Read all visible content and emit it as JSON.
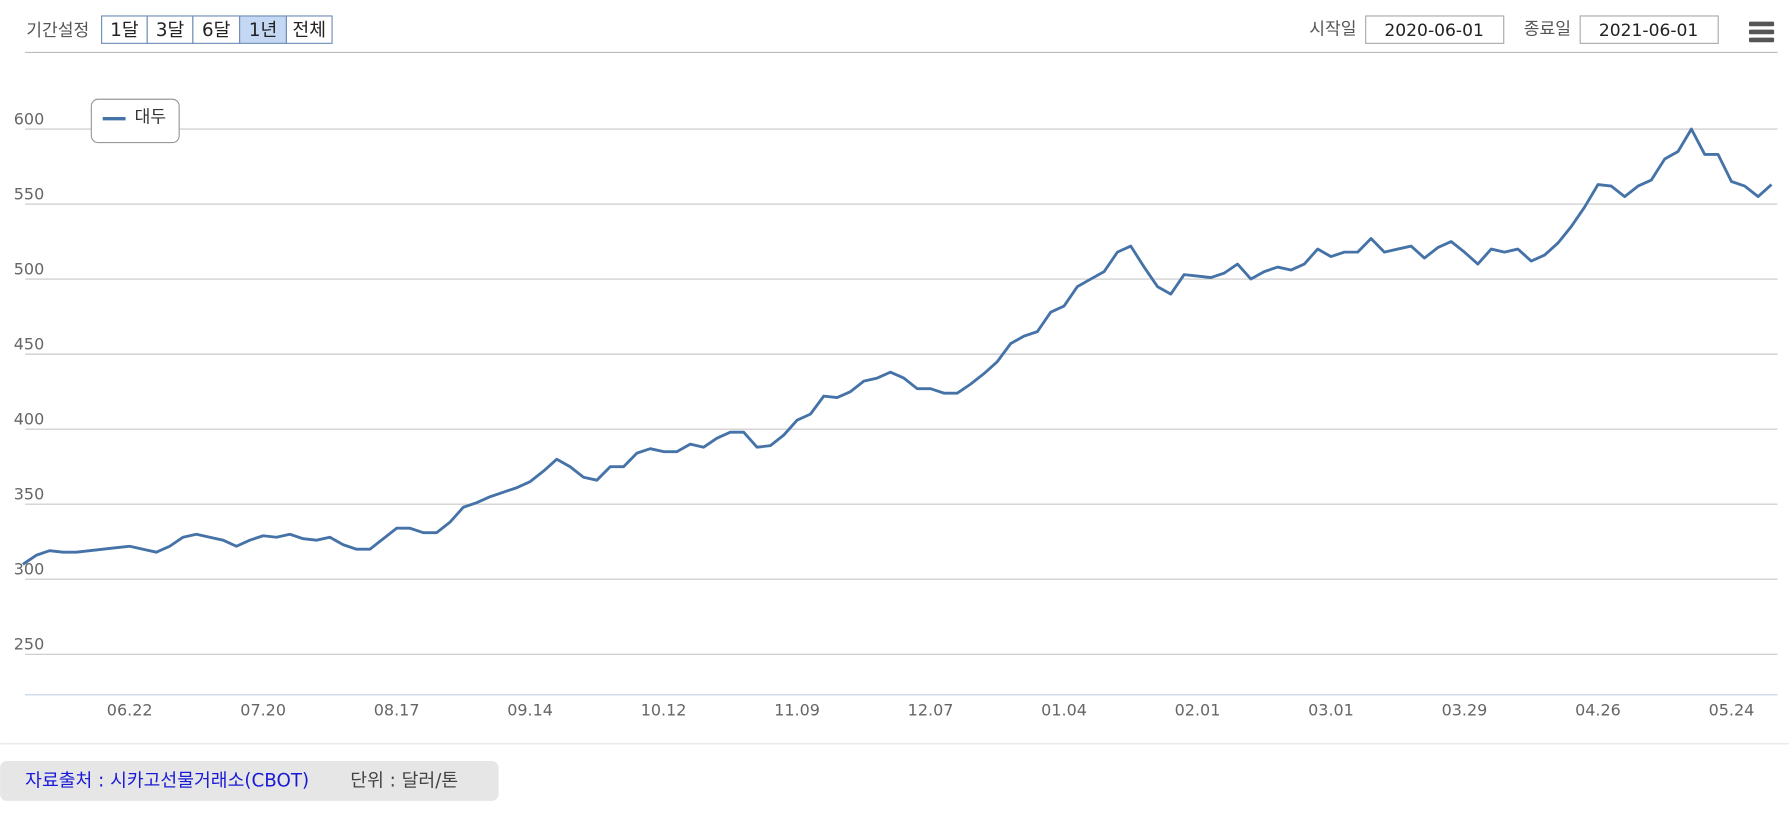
{
  "controls": {
    "period_label": "기간설정",
    "period_buttons": [
      "1달",
      "3달",
      "6달",
      "1년",
      "전체"
    ],
    "active_button": 3,
    "start_label": "시작일",
    "start_date": "2020-06-01",
    "end_label": "종료일",
    "end_date": "2021-06-01"
  },
  "footer": {
    "source": "자료출처 : 시카고선물거래소(CBOT)",
    "unit": "단위 : 달러/톤"
  },
  "chart_data": {
    "type": "line",
    "categories": [
      null,
      null,
      null,
      null,
      null,
      null,
      null,
      null,
      "06.22",
      null,
      null,
      null,
      null,
      null,
      null,
      null,
      null,
      null,
      "07.20",
      null,
      null,
      null,
      null,
      null,
      null,
      null,
      null,
      null,
      "08.17",
      null,
      null,
      null,
      null,
      null,
      null,
      null,
      null,
      null,
      "09.14",
      null,
      null,
      null,
      null,
      null,
      null,
      null,
      null,
      null,
      "10.12",
      null,
      null,
      null,
      null,
      null,
      null,
      null,
      null,
      null,
      "11.09",
      null,
      null,
      null,
      null,
      null,
      null,
      null,
      null,
      null,
      "12.07",
      null,
      null,
      null,
      null,
      null,
      null,
      null,
      null,
      null,
      "01.04",
      null,
      null,
      null,
      null,
      null,
      null,
      null,
      null,
      null,
      "02.01",
      null,
      null,
      null,
      null,
      null,
      null,
      null,
      null,
      null,
      "03.01",
      null,
      null,
      null,
      null,
      null,
      null,
      null,
      null,
      null,
      "03.29",
      null,
      null,
      null,
      null,
      null,
      null,
      null,
      null,
      null,
      "04.26",
      null,
      null,
      null,
      null,
      null,
      null,
      null,
      null,
      null,
      "05.24",
      null,
      null,
      null
    ],
    "series": [
      {
        "name": "대두",
        "color": "#4572a7",
        "values": [
          310,
          316,
          319,
          318,
          318,
          319,
          320,
          321,
          322,
          320,
          318,
          322,
          328,
          330,
          328,
          326,
          322,
          326,
          329,
          328,
          330,
          327,
          326,
          328,
          323,
          320,
          320,
          327,
          334,
          334,
          331,
          331,
          338,
          348,
          351,
          355,
          358,
          361,
          365,
          372,
          380,
          375,
          368,
          366,
          375,
          375,
          384,
          387,
          385,
          385,
          390,
          388,
          394,
          398,
          398,
          388,
          389,
          396,
          406,
          410,
          422,
          421,
          425,
          432,
          434,
          438,
          434,
          427,
          427,
          424,
          424,
          430,
          437,
          445,
          457,
          462,
          465,
          478,
          482,
          495,
          500,
          505,
          518,
          522,
          508,
          495,
          490,
          503,
          502,
          501,
          504,
          510,
          500,
          505,
          508,
          506,
          510,
          520,
          515,
          518,
          518,
          527,
          518,
          520,
          522,
          514,
          521,
          525,
          518,
          510,
          520,
          518,
          520,
          512,
          516,
          524,
          535,
          548,
          563,
          562,
          555,
          562,
          566,
          580,
          585,
          600,
          583,
          583,
          565,
          562,
          555,
          563
        ]
      }
    ],
    "ylim": [
      223,
      651
    ],
    "yticks": [
      250,
      300,
      350,
      400,
      450,
      500,
      550,
      600
    ],
    "grid": true,
    "legend": "top-left"
  }
}
